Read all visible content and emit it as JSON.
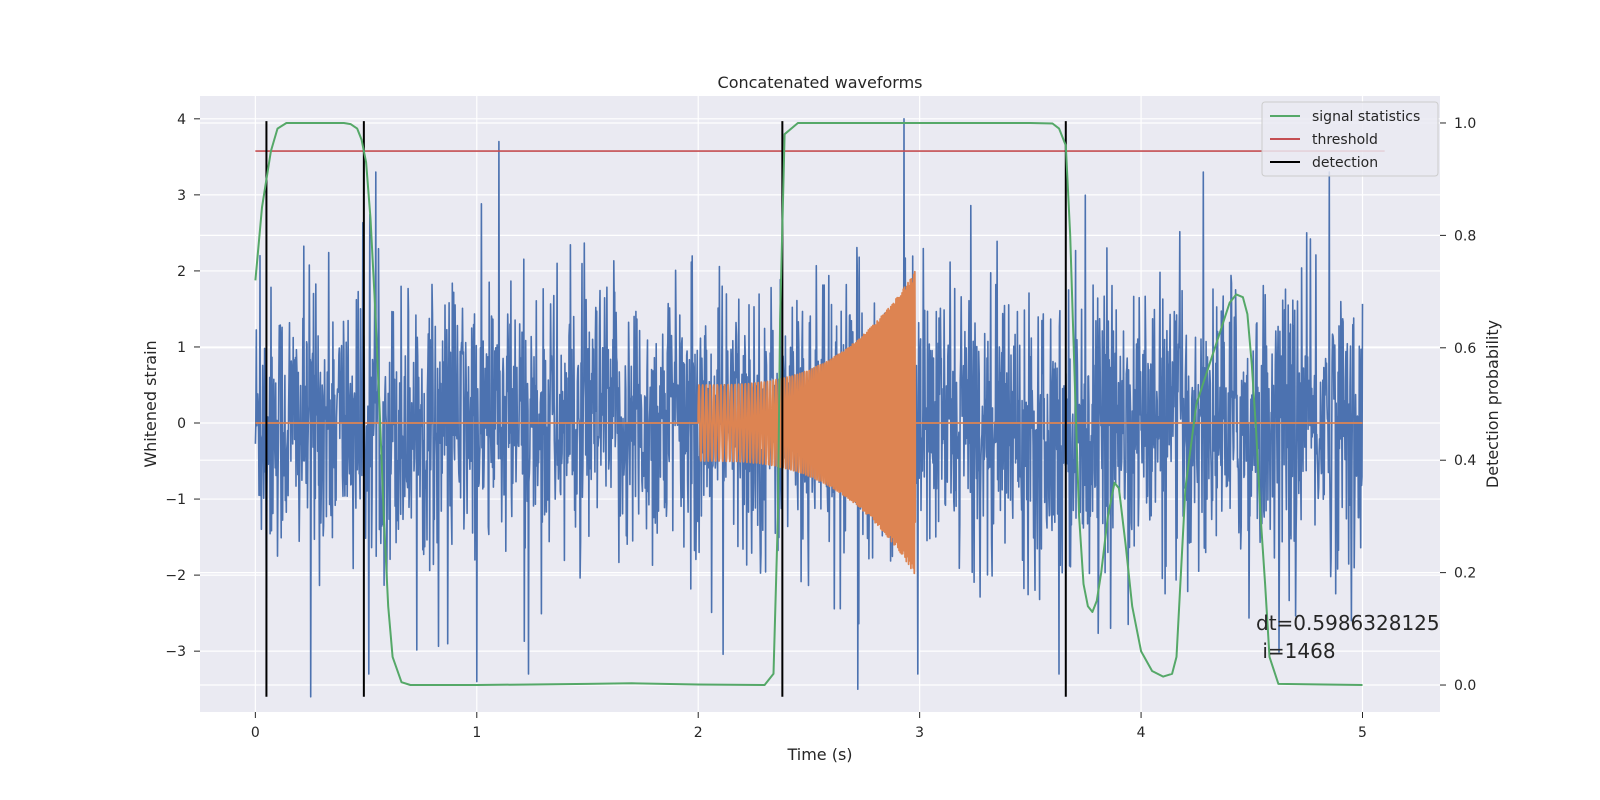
{
  "chart_data": {
    "type": "line",
    "title": "Concatenated waveforms",
    "xlabel": "Time (s)",
    "ylabel": "Whitened strain",
    "y2label": "Detection probability",
    "xlim": [
      -0.25,
      5.35
    ],
    "ylim": [
      -3.8,
      4.3
    ],
    "y2lim": [
      -0.048,
      1.048
    ],
    "xticks": [
      0,
      1,
      2,
      3,
      4,
      5
    ],
    "xtick_labels": [
      "0",
      "1",
      "2",
      "3",
      "4",
      "5"
    ],
    "yticks": [
      4,
      3,
      2,
      1,
      0,
      -1,
      -2,
      -3
    ],
    "ytick_labels": [
      "4",
      "3",
      "2",
      "1",
      "0",
      "−1",
      "−2",
      "−3"
    ],
    "y2ticks": [
      1.0,
      0.8,
      0.6,
      0.4,
      0.2,
      0.0
    ],
    "y2tick_labels": [
      "1.0",
      "0.8",
      "0.6",
      "0.4",
      "0.2",
      "0.0"
    ],
    "grid": true,
    "legend_position": "top-right",
    "series": [
      {
        "name": "",
        "kind": "noise",
        "axis": "left",
        "color": "#4c72b0",
        "x_range": [
          0,
          5
        ],
        "typical_amplitude": 1.6,
        "peak_values": [
          [
            0.02,
            2.2
          ],
          [
            0.05,
            -2.3
          ],
          [
            0.25,
            -3.6
          ],
          [
            1.1,
            3.7
          ],
          [
            1.0,
            -3.4
          ],
          [
            2.93,
            4.0
          ],
          [
            2.72,
            -3.5
          ],
          [
            3.63,
            -3.3
          ],
          [
            4.85,
            3.3
          ],
          [
            4.95,
            -2.6
          ]
        ]
      },
      {
        "name": "",
        "kind": "chirp",
        "axis": "left",
        "color": "#dd8452",
        "x_range": [
          2.0,
          2.98
        ],
        "start_amplitude": 0.5,
        "end_amplitude": 2.0,
        "baseline": 0
      },
      {
        "name": "signal statistics",
        "axis": "right",
        "color": "#55a868",
        "x": [
          0.0,
          0.03,
          0.07,
          0.1,
          0.14,
          0.2,
          0.3,
          0.4,
          0.43,
          0.46,
          0.48,
          0.5,
          0.52,
          0.54,
          0.56,
          0.58,
          0.6,
          0.62,
          0.66,
          0.7,
          1.0,
          1.5,
          1.7,
          2.0,
          2.3,
          2.34,
          2.36,
          2.37,
          2.39,
          2.45,
          3.0,
          3.5,
          3.6,
          3.63,
          3.66,
          3.68,
          3.7,
          3.72,
          3.74,
          3.76,
          3.78,
          3.8,
          3.82,
          3.85,
          3.88,
          3.9,
          3.93,
          3.96,
          4.0,
          4.05,
          4.1,
          4.14,
          4.16,
          4.2,
          4.25,
          4.3,
          4.35,
          4.4,
          4.43,
          4.46,
          4.48,
          4.5,
          4.52,
          4.54,
          4.56,
          4.58,
          4.62,
          5.0
        ],
        "values": [
          0.72,
          0.85,
          0.95,
          0.99,
          1.0,
          1.0,
          1.0,
          1.0,
          0.998,
          0.99,
          0.97,
          0.93,
          0.83,
          0.68,
          0.5,
          0.3,
          0.14,
          0.05,
          0.005,
          0.0,
          0.0,
          0.002,
          0.003,
          0.001,
          0.0,
          0.02,
          0.3,
          0.65,
          0.98,
          1.0,
          1.0,
          1.0,
          0.999,
          0.99,
          0.96,
          0.8,
          0.55,
          0.3,
          0.18,
          0.14,
          0.13,
          0.15,
          0.2,
          0.3,
          0.36,
          0.35,
          0.25,
          0.14,
          0.06,
          0.025,
          0.015,
          0.02,
          0.05,
          0.35,
          0.5,
          0.56,
          0.62,
          0.68,
          0.695,
          0.69,
          0.66,
          0.57,
          0.45,
          0.3,
          0.18,
          0.05,
          0.002,
          0.0
        ]
      },
      {
        "name": "threshold",
        "axis": "right",
        "color": "#c44e52",
        "x": [
          0,
          5.1
        ],
        "values": [
          0.95,
          0.95
        ]
      },
      {
        "name": "detection",
        "kind": "vertical_lines",
        "color": "#000000",
        "x": [
          0.05,
          0.49,
          2.38,
          3.66
        ]
      }
    ],
    "annotation": {
      "line1": "dt=0.5986328125",
      "line2": " i=1468"
    }
  }
}
